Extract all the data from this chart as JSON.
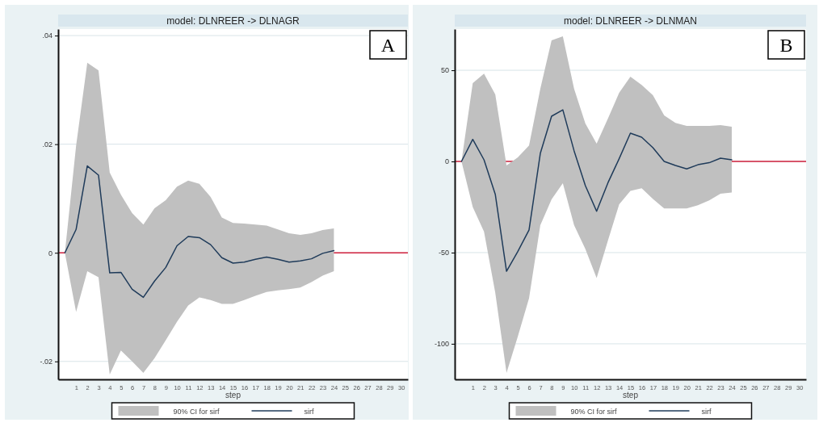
{
  "chart_data": [
    {
      "type": "line",
      "title": "model: DLNREER -> DLNAGR",
      "xlabel": "step",
      "annotations": [
        "A",
        "90% CI for sirf"
      ],
      "x": [
        0,
        1,
        2,
        3,
        4,
        5,
        6,
        7,
        8,
        9,
        10,
        11,
        12,
        13,
        14,
        15,
        16,
        17,
        18,
        19,
        20,
        21,
        22,
        23,
        24
      ],
      "series": [
        {
          "type": "line",
          "name": "sirf",
          "color": "#1f3b5a",
          "values": [
            0,
            0.0043,
            0.016,
            0.0143,
            -0.0037,
            -0.0036,
            -0.0067,
            -0.0082,
            -0.0052,
            -0.0027,
            0.0013,
            0.003,
            0.0028,
            0.0015,
            -0.0009,
            -0.0019,
            -0.0017,
            -0.0012,
            -0.0008,
            -0.0012,
            -0.0017,
            -0.0015,
            -0.0011,
            -0.0001,
            0.0004
          ],
          "lower": [
            0,
            -0.0109,
            -0.0034,
            -0.0045,
            -0.0224,
            -0.018,
            -0.02,
            -0.0221,
            -0.0194,
            -0.0161,
            -0.0127,
            -0.0097,
            -0.0082,
            -0.0087,
            -0.0094,
            -0.0094,
            -0.0087,
            -0.0079,
            -0.0072,
            -0.0069,
            -0.0067,
            -0.0064,
            -0.0054,
            -0.0042,
            -0.0034
          ],
          "upper": [
            0,
            0.0197,
            0.035,
            0.0336,
            0.0148,
            0.0107,
            0.0073,
            0.0052,
            0.0082,
            0.0097,
            0.0122,
            0.0133,
            0.0127,
            0.0103,
            0.0065,
            0.0055,
            0.0054,
            0.0052,
            0.005,
            0.0043,
            0.0036,
            0.0033,
            0.0036,
            0.0042,
            0.0045
          ]
        }
      ],
      "xlim": [
        -0.6,
        30.6
      ],
      "xticks": [
        1,
        2,
        3,
        4,
        5,
        6,
        7,
        8,
        9,
        10,
        11,
        12,
        13,
        14,
        15,
        16,
        17,
        18,
        19,
        20,
        21,
        22,
        23,
        24,
        25,
        26,
        27,
        28,
        29,
        30
      ],
      "ylim": [
        -0.0233,
        0.0412
      ],
      "yticks": [
        {
          "value": -0.02,
          "label": "-.02"
        },
        0,
        {
          "value": 0.02,
          "label": ".02"
        },
        {
          "value": 0.04,
          "label": ".04"
        }
      ],
      "ref_lines": [
        {
          "axis": "y",
          "value": 0,
          "color": "#d0203c"
        }
      ],
      "grid": "y",
      "legend": "bottom"
    },
    {
      "type": "line",
      "title": "model: DLNREER -> DLNMAN",
      "xlabel": "step",
      "annotations": [
        "B",
        "90% CI for sirf"
      ],
      "x": [
        0,
        1,
        2,
        3,
        4,
        5,
        6,
        7,
        8,
        9,
        10,
        11,
        12,
        13,
        14,
        15,
        16,
        17,
        18,
        19,
        20,
        21,
        22,
        23,
        24
      ],
      "series": [
        {
          "type": "line",
          "name": "sirf",
          "color": "#1f3b5a",
          "values": [
            0,
            12.1,
            0.9,
            -18,
            -60.2,
            -49.4,
            -37.6,
            4.4,
            24.8,
            28.3,
            5.8,
            -13.3,
            -27.3,
            -11.8,
            1.5,
            15.5,
            13.3,
            7.5,
            0,
            -2.2,
            -4.1,
            -1.8,
            -0.7,
            1.8,
            0.9
          ],
          "lower": [
            0,
            -25,
            -38.5,
            -72,
            -116,
            -96,
            -75,
            -35,
            -20.8,
            -11.9,
            -35,
            -48,
            -64,
            -43.5,
            -23.6,
            -16.2,
            -14.7,
            -20.6,
            -25.8,
            -25.8,
            -25.8,
            -24,
            -21.4,
            -17.7,
            -17
          ],
          "upper": [
            0,
            42.9,
            48.2,
            36.7,
            -2.2,
            2.2,
            8.8,
            39.8,
            66.4,
            68.6,
            39.8,
            20.8,
            9.7,
            23.5,
            37.6,
            46.5,
            42,
            36.3,
            25.2,
            21.2,
            19.5,
            19.5,
            19.5,
            19.9,
            19
          ]
        }
      ],
      "xlim": [
        -0.6,
        30.6
      ],
      "xticks": [
        1,
        2,
        3,
        4,
        5,
        6,
        7,
        8,
        9,
        10,
        11,
        12,
        13,
        14,
        15,
        16,
        17,
        18,
        19,
        20,
        21,
        22,
        23,
        24,
        25,
        26,
        27,
        28,
        29,
        30
      ],
      "ylim": [
        -119.5,
        72.6
      ],
      "yticks": [
        -100,
        -50,
        0,
        50
      ],
      "ref_lines": [
        {
          "axis": "y",
          "value": 0,
          "color": "#d0203c"
        }
      ],
      "grid": "y",
      "legend": "bottom"
    }
  ]
}
